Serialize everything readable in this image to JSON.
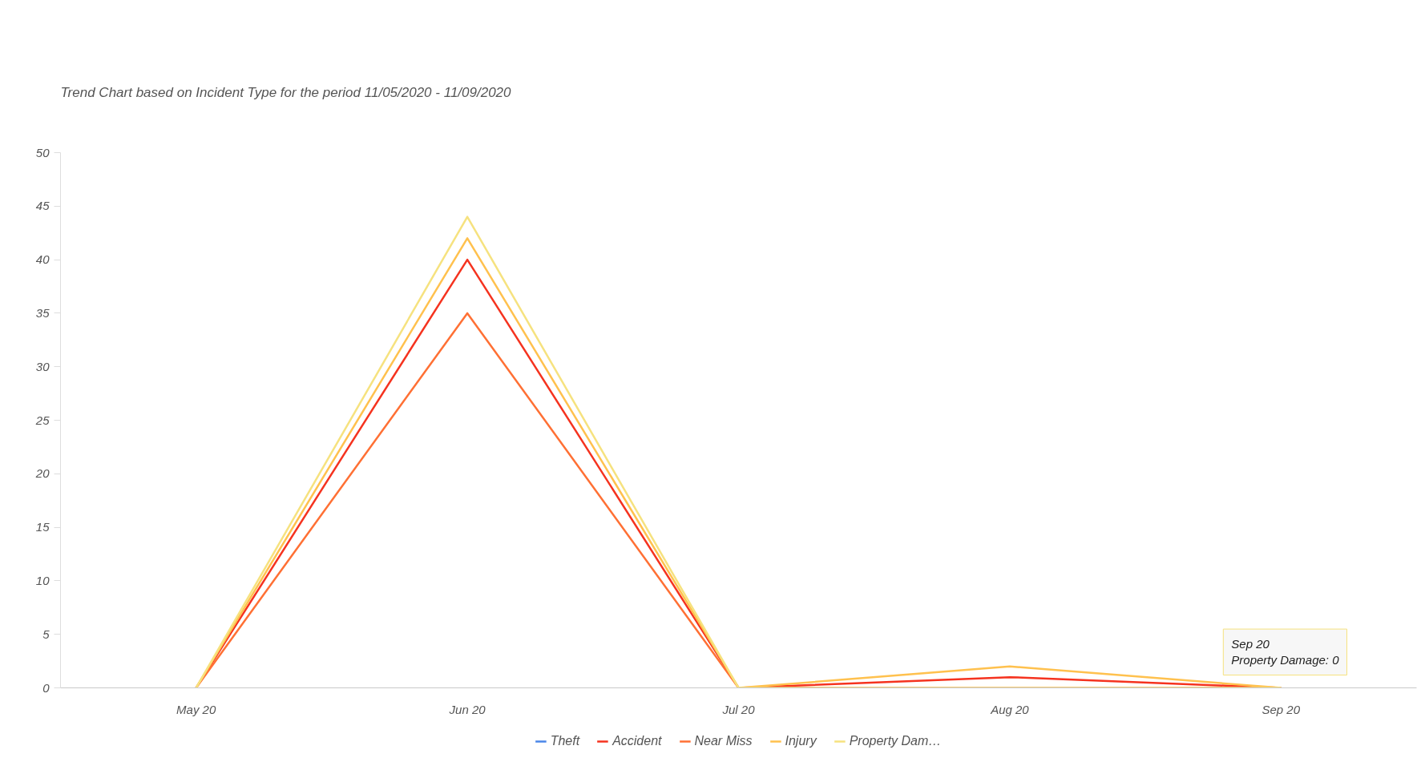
{
  "chart_data": {
    "type": "line",
    "subtitle": "Trend Chart based on Incident Type for the period 11/05/2020 - 11/09/2020",
    "categories": [
      "May 20",
      "Jun 20",
      "Jul 20",
      "Aug 20",
      "Sep 20"
    ],
    "series": [
      {
        "name": "Theft",
        "color": "#4a86e8",
        "values": [
          null,
          null,
          null,
          null,
          null
        ]
      },
      {
        "name": "Accident",
        "color": "#f5331f",
        "values": [
          0,
          40,
          0,
          1,
          0
        ]
      },
      {
        "name": "Near Miss",
        "color": "#ff7034",
        "values": [
          0,
          35,
          0,
          0,
          0
        ]
      },
      {
        "name": "Injury",
        "color": "#ffc14e",
        "values": [
          0,
          42,
          0,
          2,
          0
        ]
      },
      {
        "name": "Property Dam…",
        "color": "#f6e27f",
        "values": [
          0,
          44,
          0,
          0,
          0
        ]
      }
    ],
    "ylim": [
      0,
      50
    ],
    "yticks": [
      0,
      5,
      10,
      15,
      20,
      25,
      30,
      35,
      40,
      45,
      50
    ],
    "grid": false,
    "legend": "bottom",
    "annotations": [
      {
        "text": "Sep 20\nProperty Damage: 0",
        "x": "Sep 20",
        "y": 0
      }
    ]
  }
}
